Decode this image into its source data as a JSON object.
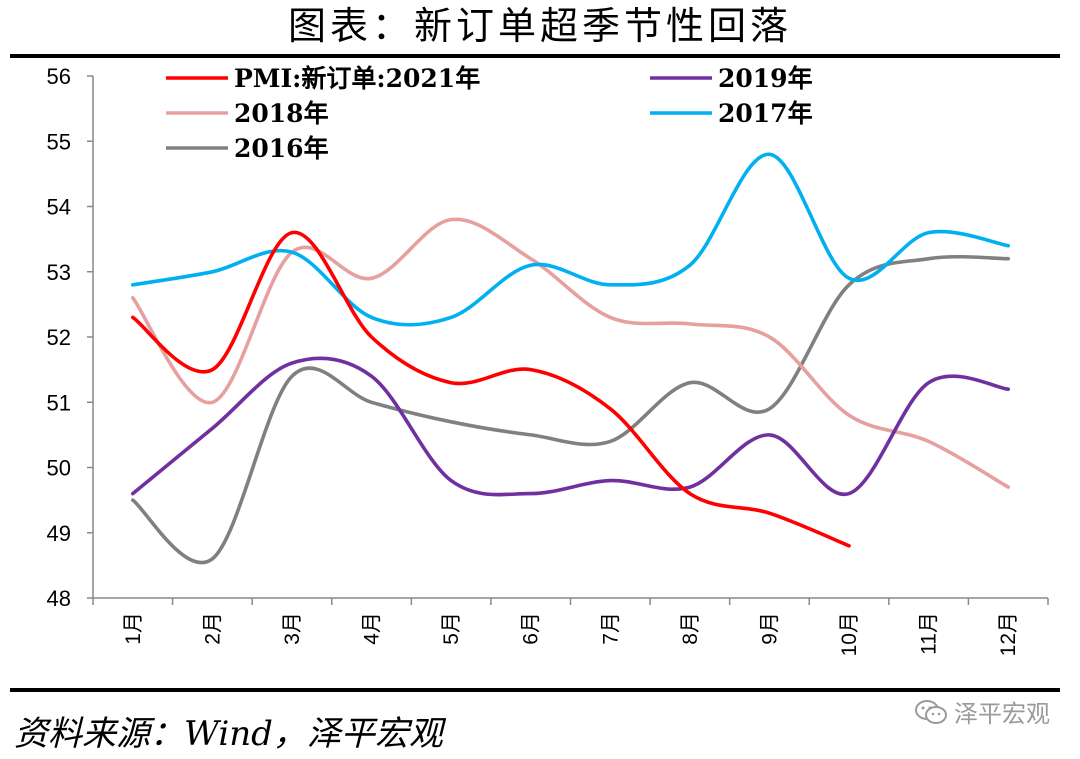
{
  "title": "图表：新订单超季节性回落",
  "source": "资料来源：Wind，泽平宏观",
  "watermark": "泽平宏观",
  "chart_data": {
    "type": "line",
    "title": "图表：新订单超季节性回落",
    "xlabel": "",
    "ylabel": "",
    "ylim": [
      48,
      56
    ],
    "yticks": [
      48,
      49,
      50,
      51,
      52,
      53,
      54,
      55,
      56
    ],
    "categories": [
      "1月",
      "2月",
      "3月",
      "4月",
      "5月",
      "6月",
      "7月",
      "8月",
      "9月",
      "10月",
      "11月",
      "12月"
    ],
    "grid": false,
    "legend_position": "top",
    "series": [
      {
        "name": "PMI:新订单:2021年",
        "color": "#ff0000",
        "values": [
          52.3,
          51.5,
          53.6,
          52.0,
          51.3,
          51.5,
          50.9,
          49.6,
          49.3,
          48.8,
          null,
          null
        ]
      },
      {
        "name": "2019年",
        "color": "#7030a0",
        "values": [
          49.6,
          50.6,
          51.6,
          51.4,
          49.8,
          49.6,
          49.8,
          49.7,
          50.5,
          49.6,
          51.3,
          51.2
        ]
      },
      {
        "name": "2018年",
        "color": "#e6a0a0",
        "values": [
          52.6,
          51.0,
          53.3,
          52.9,
          53.8,
          53.2,
          52.3,
          52.2,
          52.0,
          50.8,
          50.4,
          49.7
        ]
      },
      {
        "name": "2017年",
        "color": "#00b0f0",
        "values": [
          52.8,
          53.0,
          53.3,
          52.3,
          52.3,
          53.1,
          52.8,
          53.1,
          54.8,
          52.9,
          53.6,
          53.4
        ]
      },
      {
        "name": "2016年",
        "color": "#808080",
        "values": [
          49.5,
          48.6,
          51.4,
          51.0,
          50.7,
          50.5,
          50.4,
          51.3,
          50.9,
          52.8,
          53.2,
          53.2
        ]
      }
    ]
  }
}
